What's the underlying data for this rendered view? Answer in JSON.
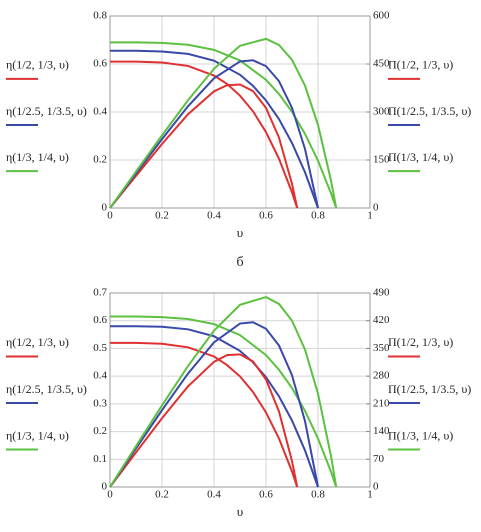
{
  "caption": "б",
  "chart_data": [
    {
      "type": "line",
      "xlabel": "υ",
      "xlim": [
        0,
        1
      ],
      "xticks": [
        0,
        0.2,
        0.4,
        0.6,
        0.8,
        1
      ],
      "ylim": [
        0,
        0.8
      ],
      "yticks": [
        0,
        0.2,
        0.4,
        0.6,
        0.8
      ],
      "y2lim": [
        0,
        600
      ],
      "y2ticks": [
        0,
        150,
        300,
        450,
        600
      ],
      "grid": true,
      "series": [
        {
          "name": "η(1/2, 1/3, υ)",
          "color": "#e03030",
          "x": [
            0,
            0.1,
            0.2,
            0.3,
            0.4,
            0.45,
            0.5,
            0.55,
            0.6,
            0.65,
            0.7,
            0.72
          ],
          "values": [
            0.61,
            0.61,
            0.606,
            0.592,
            0.552,
            0.517,
            0.468,
            0.403,
            0.316,
            0.205,
            0.065,
            0
          ]
        },
        {
          "name": "η(1/2.5, 1/3.5, υ)",
          "color": "#3a48a8",
          "x": [
            0,
            0.1,
            0.2,
            0.3,
            0.4,
            0.5,
            0.55,
            0.6,
            0.65,
            0.7,
            0.75,
            0.8
          ],
          "values": [
            0.655,
            0.655,
            0.652,
            0.642,
            0.614,
            0.555,
            0.509,
            0.448,
            0.37,
            0.271,
            0.149,
            0
          ]
        },
        {
          "name": "η(1/3, 1/4, υ)",
          "color": "#5cc040",
          "x": [
            0,
            0.1,
            0.2,
            0.3,
            0.4,
            0.5,
            0.6,
            0.65,
            0.7,
            0.75,
            0.8,
            0.85,
            0.87
          ],
          "values": [
            0.69,
            0.69,
            0.688,
            0.68,
            0.659,
            0.615,
            0.534,
            0.475,
            0.401,
            0.309,
            0.197,
            0.061,
            0
          ]
        },
        {
          "name": "Π(1/2, 1/3, υ)",
          "color": "#e03030",
          "axis": "y2",
          "x": [
            0,
            0.1,
            0.2,
            0.3,
            0.4,
            0.45,
            0.5,
            0.55,
            0.6,
            0.65,
            0.7,
            0.72
          ],
          "values": [
            0,
            100.6,
            200.1,
            292.9,
            364.4,
            383.6,
            386,
            365.4,
            312.8,
            219.8,
            75.4,
            0
          ]
        },
        {
          "name": "Π(1/2.5, 1/3.5, υ)",
          "color": "#3a48a8",
          "axis": "y2",
          "x": [
            0,
            0.1,
            0.2,
            0.3,
            0.4,
            0.5,
            0.55,
            0.6,
            0.65,
            0.7,
            0.75,
            0.8
          ],
          "values": [
            0,
            108.1,
            215.3,
            317.8,
            405.3,
            457.9,
            461.6,
            443.3,
            396.4,
            313,
            184.4,
            0
          ]
        },
        {
          "name": "Π(1/3, 1/4, υ)",
          "color": "#5cc040",
          "axis": "y2",
          "x": [
            0,
            0.1,
            0.2,
            0.3,
            0.4,
            0.5,
            0.6,
            0.65,
            0.7,
            0.75,
            0.8,
            0.85,
            0.87
          ],
          "values": [
            0,
            113.8,
            227.1,
            336.7,
            435,
            507.1,
            528.6,
            509.5,
            463,
            382.3,
            259.6,
            85.9,
            0
          ]
        }
      ]
    },
    {
      "type": "line",
      "xlabel": "υ",
      "xlim": [
        0,
        1
      ],
      "xticks": [
        0,
        0.2,
        0.4,
        0.6,
        0.8,
        1
      ],
      "ylim": [
        0,
        0.7
      ],
      "yticks": [
        0,
        0.1,
        0.2,
        0.3,
        0.4,
        0.5,
        0.6,
        0.7
      ],
      "y2lim": [
        0,
        490
      ],
      "y2ticks": [
        0,
        70,
        140,
        210,
        280,
        350,
        420,
        490
      ],
      "grid": true,
      "series": [
        {
          "name": "η(1/2, 1/3, υ)",
          "color": "#e03030",
          "x": [
            0,
            0.1,
            0.2,
            0.3,
            0.4,
            0.45,
            0.5,
            0.55,
            0.6,
            0.65,
            0.7,
            0.72
          ],
          "values": [
            0.52,
            0.52,
            0.517,
            0.504,
            0.471,
            0.44,
            0.399,
            0.343,
            0.269,
            0.175,
            0.056,
            0
          ]
        },
        {
          "name": "η(1/2.5, 1/3.5, υ)",
          "color": "#3a48a8",
          "x": [
            0,
            0.1,
            0.2,
            0.3,
            0.4,
            0.5,
            0.55,
            0.6,
            0.65,
            0.7,
            0.75,
            0.8
          ],
          "values": [
            0.58,
            0.58,
            0.578,
            0.569,
            0.544,
            0.491,
            0.45,
            0.396,
            0.327,
            0.24,
            0.132,
            0
          ]
        },
        {
          "name": "η(1/3, 1/4, υ)",
          "color": "#5cc040",
          "x": [
            0,
            0.1,
            0.2,
            0.3,
            0.4,
            0.5,
            0.6,
            0.65,
            0.7,
            0.75,
            0.8,
            0.85,
            0.87
          ],
          "values": [
            0.615,
            0.615,
            0.613,
            0.606,
            0.588,
            0.548,
            0.476,
            0.423,
            0.357,
            0.275,
            0.175,
            0.055,
            0
          ]
        },
        {
          "name": "Π(1/2, 1/3, υ)",
          "color": "#e03030",
          "axis": "y2",
          "x": [
            0,
            0.1,
            0.2,
            0.3,
            0.4,
            0.45,
            0.5,
            0.55,
            0.6,
            0.65,
            0.7,
            0.72
          ],
          "values": [
            0,
            87.3,
            173.7,
            254.2,
            316.2,
            333,
            335,
            317.1,
            271.5,
            190.8,
            65.5,
            0
          ]
        },
        {
          "name": "Π(1/2.5, 1/3.5, υ)",
          "color": "#3a48a8",
          "axis": "y2",
          "x": [
            0,
            0.1,
            0.2,
            0.3,
            0.4,
            0.5,
            0.55,
            0.6,
            0.65,
            0.7,
            0.75,
            0.8
          ],
          "values": [
            0,
            97.4,
            194.1,
            286.5,
            365.4,
            412.8,
            416.2,
            399.7,
            357.3,
            282.2,
            166.3,
            0
          ]
        },
        {
          "name": "Π(1/3, 1/4, υ)",
          "color": "#5cc040",
          "axis": "y2",
          "x": [
            0,
            0.1,
            0.2,
            0.3,
            0.4,
            0.5,
            0.6,
            0.65,
            0.7,
            0.75,
            0.8,
            0.85,
            0.87
          ],
          "values": [
            0,
            103.3,
            206.1,
            305.6,
            394.8,
            460.2,
            479.7,
            462.3,
            420.1,
            347,
            235.6,
            78,
            0
          ]
        }
      ]
    }
  ]
}
